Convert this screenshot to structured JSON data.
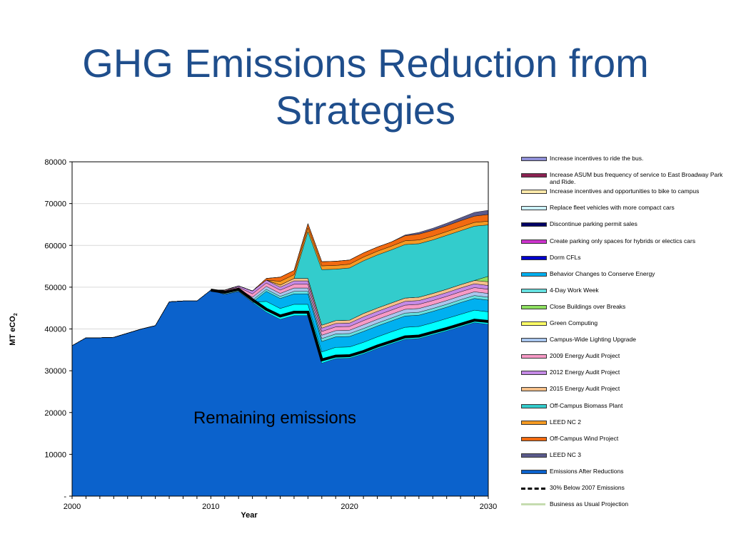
{
  "slide": {
    "title": "GHG Emissions Reduction from Strategies"
  },
  "chart_data": {
    "type": "area",
    "title": "",
    "xlabel": "Year",
    "ylabel": "MT eCO",
    "ylabel_sub": "2",
    "xlim": [
      2000,
      2030
    ],
    "ylim": [
      0,
      80000
    ],
    "x_tick_labels": [
      "2000",
      "2010",
      "2020",
      "2030"
    ],
    "y_tick_labels": [
      "-",
      "10000",
      "20000",
      "30000",
      "40000",
      "50000",
      "60000",
      "70000",
      "80000"
    ],
    "annotation": "Remaining emissions",
    "grid": "horizontal",
    "legend_position": "right",
    "x": [
      2000,
      2001,
      2002,
      2003,
      2004,
      2005,
      2006,
      2007,
      2008,
      2009,
      2010,
      2011,
      2012,
      2013,
      2014,
      2015,
      2016,
      2017,
      2018,
      2019,
      2020,
      2021,
      2022,
      2023,
      2024,
      2025,
      2026,
      2027,
      2028,
      2029,
      2030
    ],
    "series": [
      {
        "name": "Emissions After Reductions",
        "color": "#0b62cc",
        "bound": "line",
        "values": [
          36000,
          37900,
          37900,
          38000,
          39000,
          40000,
          40800,
          46500,
          46700,
          46700,
          49300,
          48300,
          49000,
          46400,
          44000,
          42300,
          43200,
          43200,
          31800,
          32900,
          33000,
          34000,
          35300,
          36400,
          37500,
          37700,
          38600,
          39500,
          40500,
          41500,
          41100
        ]
      },
      {
        "name": "30% Below 2007 Emissions",
        "color": "#000000",
        "bound": "dashed",
        "values": [
          null,
          null,
          null,
          null,
          null,
          null,
          null,
          null,
          null,
          null,
          49300,
          48800,
          49500,
          47000,
          44700,
          43100,
          44000,
          44000,
          32600,
          33500,
          33600,
          34600,
          35900,
          37000,
          38100,
          38300,
          39200,
          40100,
          41100,
          42100,
          41800
        ]
      },
      {
        "name": "4-Day Work Week",
        "color": "#00ffff",
        "values": [
          0,
          0,
          0,
          0,
          0,
          0,
          0,
          0,
          0,
          0,
          0,
          0,
          0,
          0,
          2600,
          2600,
          2700,
          2700,
          2700,
          2700,
          2700,
          2800,
          2800,
          2900,
          2900,
          2900,
          2900,
          3000,
          3000,
          3000,
          3000
        ]
      },
      {
        "name": "Behavior Changes to Conserve Energy",
        "color": "#00b0f0",
        "values": [
          0,
          0,
          0,
          0,
          0,
          0,
          0,
          0,
          0,
          0,
          0,
          0,
          0,
          0,
          2400,
          2400,
          2500,
          2500,
          2500,
          2500,
          2500,
          2600,
          2600,
          2600,
          2700,
          2700,
          2700,
          2700,
          2800,
          2800,
          2800
        ]
      },
      {
        "name": "Replace fleet vehicles with more compact cars",
        "color": "#66e0e0",
        "values": [
          0,
          0,
          0,
          0,
          0,
          0,
          0,
          0,
          0,
          0,
          0,
          300,
          300,
          500,
          500,
          500,
          600,
          600,
          700,
          700,
          700,
          700,
          700,
          700,
          700,
          700,
          700,
          700,
          700,
          700,
          700
        ]
      },
      {
        "name": "Campus-Wide Lighting Upgrade",
        "color": "#a9c6ee",
        "values": [
          0,
          0,
          0,
          0,
          0,
          0,
          0,
          0,
          0,
          0,
          0,
          300,
          300,
          700,
          700,
          700,
          800,
          800,
          800,
          800,
          800,
          900,
          900,
          900,
          900,
          900,
          900,
          900,
          900,
          900,
          900
        ]
      },
      {
        "name": "2009 Energy Audit Project",
        "color": "#f79ac6",
        "values": [
          0,
          0,
          0,
          0,
          0,
          0,
          0,
          0,
          0,
          0,
          0,
          400,
          400,
          800,
          800,
          800,
          900,
          900,
          900,
          900,
          900,
          1000,
          1000,
          1000,
          1000,
          1000,
          1000,
          1000,
          1000,
          1000,
          1000
        ]
      },
      {
        "name": "2012 Energy Audit Project",
        "color": "#c58ae6",
        "values": [
          0,
          0,
          0,
          0,
          0,
          0,
          0,
          0,
          0,
          0,
          0,
          0,
          300,
          700,
          700,
          700,
          800,
          800,
          800,
          800,
          800,
          900,
          900,
          900,
          900,
          900,
          900,
          900,
          900,
          900,
          900
        ]
      },
      {
        "name": "2015 Energy Audit Project",
        "color": "#f5c08a",
        "values": [
          0,
          0,
          0,
          0,
          0,
          0,
          0,
          0,
          0,
          0,
          0,
          0,
          0,
          0,
          0,
          500,
          600,
          600,
          700,
          700,
          700,
          800,
          800,
          800,
          800,
          800,
          800,
          800,
          800,
          800,
          900
        ]
      },
      {
        "name": "Close Buildings over Breaks",
        "color": "#8ee060",
        "values": [
          0,
          0,
          0,
          0,
          0,
          0,
          0,
          0,
          0,
          0,
          0,
          0,
          0,
          0,
          0,
          0,
          0,
          0,
          0,
          0,
          0,
          0,
          0,
          0,
          0,
          0,
          0,
          0,
          0,
          0,
          1300
        ]
      },
      {
        "name": "Off-Campus Biomass Plant",
        "color": "#33cccc",
        "values": [
          0,
          0,
          0,
          0,
          0,
          0,
          0,
          0,
          0,
          0,
          0,
          0,
          0,
          0,
          0,
          0,
          0,
          11200,
          13300,
          12300,
          12500,
          12600,
          12700,
          12700,
          12800,
          12800,
          12800,
          12900,
          12900,
          13000,
          12300
        ]
      },
      {
        "name": "LEED NC 2",
        "color": "#f59a23",
        "values": [
          0,
          0,
          0,
          0,
          0,
          0,
          0,
          0,
          0,
          0,
          0,
          0,
          0,
          0,
          0,
          900,
          900,
          900,
          900,
          900,
          900,
          900,
          900,
          900,
          900,
          900,
          900,
          900,
          900,
          900,
          900
        ]
      },
      {
        "name": "Off-Campus Wind Project",
        "color": "#f26a10",
        "values": [
          0,
          0,
          0,
          0,
          0,
          0,
          0,
          0,
          0,
          0,
          0,
          0,
          0,
          0,
          400,
          1000,
          1000,
          1000,
          1000,
          1000,
          1000,
          1000,
          1000,
          1000,
          1200,
          1400,
          1400,
          1400,
          1500,
          1500,
          1600
        ]
      },
      {
        "name": "LEED NC 3",
        "color": "#5a5a8c",
        "values": [
          0,
          0,
          0,
          0,
          0,
          0,
          0,
          0,
          0,
          0,
          0,
          0,
          0,
          0,
          0,
          0,
          0,
          0,
          0,
          0,
          0,
          0,
          0,
          0,
          200,
          400,
          500,
          600,
          700,
          900,
          1000
        ]
      },
      {
        "name": "Business as Usual Projection",
        "color": "#c6dcb0",
        "bound": "line",
        "values": [
          null,
          null,
          null,
          null,
          null,
          null,
          null,
          null,
          null,
          null,
          49300,
          50000,
          50800,
          51600,
          52400,
          53200,
          54000,
          54800,
          55600,
          56400,
          57200,
          58000,
          58800,
          59600,
          60400,
          61200,
          62000,
          62800,
          63600,
          64400,
          65200
        ]
      }
    ],
    "legend": [
      {
        "label": "Increase incentives to ride the bus.",
        "color": "#8f8fd6",
        "style": "box"
      },
      {
        "label": "Increase ASUM bus frequency of service to East Broadway Park and Ride.",
        "color": "#8b2252",
        "style": "box"
      },
      {
        "label": "Increase incentives and opportunities to bike to campus",
        "color": "#fde9a9",
        "style": "box"
      },
      {
        "label": "Replace fleet vehicles with more compact cars",
        "color": "#ccf2ff",
        "style": "box"
      },
      {
        "label": "Discontinue parking permit sales",
        "color": "#000066",
        "style": "box"
      },
      {
        "label": "Create parking only spaces for hybrids or electics cars",
        "color": "#cc33cc",
        "style": "box"
      },
      {
        "label": "Dorm CFLs",
        "color": "#0000cc",
        "style": "box"
      },
      {
        "label": "Behavior Changes to Conserve Energy",
        "color": "#00b0f0",
        "style": "box"
      },
      {
        "label": "4-Day Work Week",
        "color": "#66e0e0",
        "style": "box"
      },
      {
        "label": "Close Buildings over Breaks",
        "color": "#8ee060",
        "style": "box"
      },
      {
        "label": "Green Computing",
        "color": "#ffff66",
        "style": "box"
      },
      {
        "label": "Campus-Wide Lighting Upgrade",
        "color": "#a9c6ee",
        "style": "box"
      },
      {
        "label": "2009 Energy Audit Project",
        "color": "#f79ac6",
        "style": "box"
      },
      {
        "label": "2012 Energy Audit Project",
        "color": "#c58ae6",
        "style": "box"
      },
      {
        "label": "2015 Energy Audit Project",
        "color": "#f5c08a",
        "style": "box"
      },
      {
        "label": "Off-Campus Biomass Plant",
        "color": "#33cccc",
        "style": "box"
      },
      {
        "label": "LEED NC 2",
        "color": "#f59a23",
        "style": "box"
      },
      {
        "label": "Off-Campus Wind Project",
        "color": "#f26a10",
        "style": "box"
      },
      {
        "label": "LEED NC 3",
        "color": "#5a5a8c",
        "style": "box"
      },
      {
        "label": "Emissions After Reductions",
        "color": "#0b62cc",
        "style": "box"
      },
      {
        "label": "30% Below 2007 Emissions",
        "color": "#000000",
        "style": "dashed"
      },
      {
        "label": "Business as Usual Projection",
        "color": "#c6dcb0",
        "style": "line"
      }
    ]
  }
}
